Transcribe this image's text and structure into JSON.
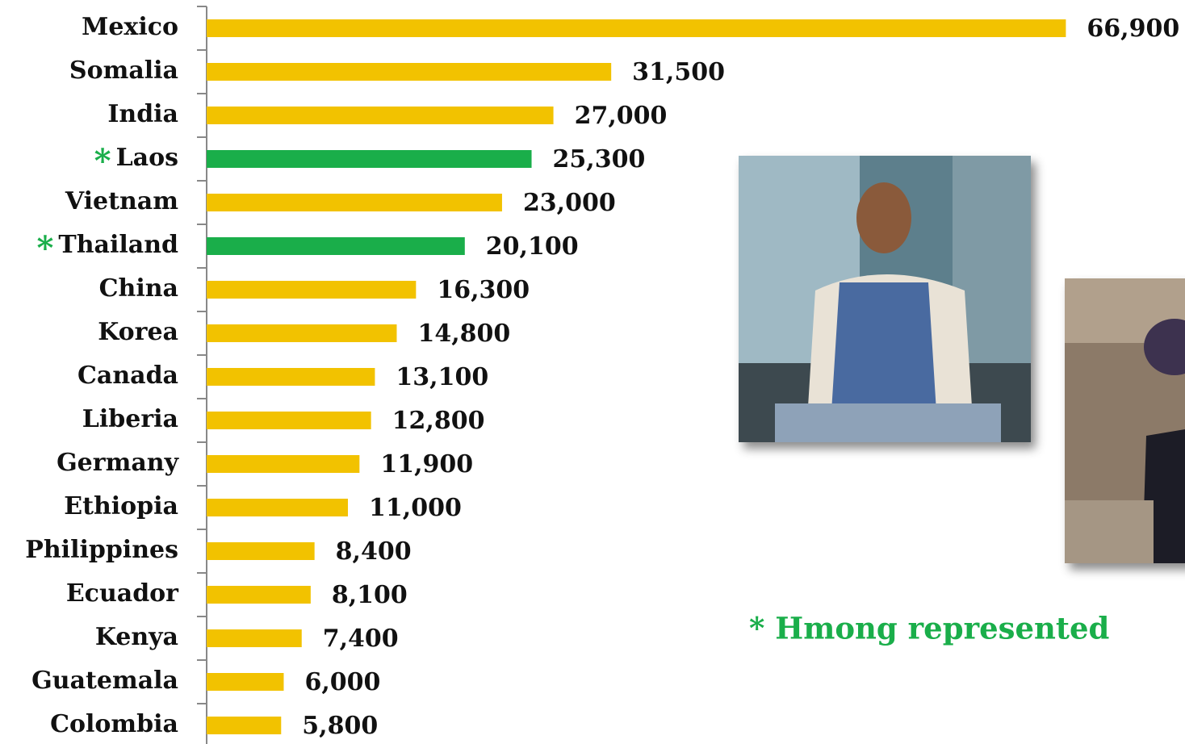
{
  "chart_data": {
    "type": "hbar",
    "categories": [
      "Mexico",
      "Somalia",
      "India",
      "Laos",
      "Vietnam",
      "Thailand",
      "China",
      "Korea",
      "Canada",
      "Liberia",
      "Germany",
      "Ethiopia",
      "Philippines",
      "Ecuador",
      "Kenya",
      "Guatemala",
      "Colombia"
    ],
    "values": [
      66900,
      31500,
      27000,
      25300,
      23000,
      20100,
      16300,
      14800,
      13100,
      12800,
      11900,
      11000,
      8400,
      8100,
      7400,
      6000,
      5800
    ],
    "value_labels": [
      "66,900",
      "31,500",
      "27,000",
      "25,300",
      "23,000",
      "20,100",
      "16,300",
      "14,800",
      "13,100",
      "12,800",
      "11,900",
      "11,000",
      "8,400",
      "8,100",
      "7,400",
      "6,000",
      "5,800"
    ],
    "color": "#f2c200",
    "highlighted": [
      false,
      false,
      false,
      true,
      false,
      true,
      false,
      false,
      false,
      false,
      false,
      false,
      false,
      false,
      false,
      false,
      false
    ],
    "highlight_color": "#1aae4a",
    "highlight_marker": "*",
    "note": "* Hmong represented",
    "xlim": [
      0,
      67000
    ]
  }
}
